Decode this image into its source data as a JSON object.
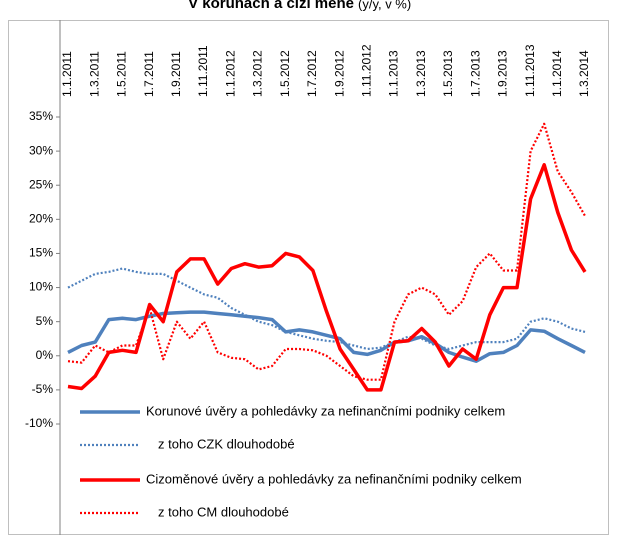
{
  "chart_data": {
    "type": "line",
    "title": "V korunách a cizí měně",
    "subtitle": "(y/y, v %)",
    "categories": [
      "1.1.2011",
      null,
      "1.3.2011",
      null,
      "1.5.2011",
      null,
      "1.7.2011",
      null,
      "1.9.2011",
      null,
      "1.11.2011",
      null,
      "1.1.2012",
      null,
      "1.3.2012",
      null,
      "1.5.2012",
      null,
      "1.7.2012",
      null,
      "1.9.2012",
      null,
      "1.11.2012",
      null,
      "1.1.2013",
      null,
      "1.3.2013",
      null,
      "1.5.2013",
      null,
      "1.7.2013",
      null,
      "1.9.2013",
      null,
      "1.11.2013",
      null,
      "1.1.2014",
      null,
      "1.3.2014"
    ],
    "ylim": [
      -10,
      35
    ],
    "yticks": [
      {
        "value": -10,
        "label": "-10%"
      },
      {
        "value": -5,
        "label": "-5%"
      },
      {
        "value": 0,
        "label": "0%"
      },
      {
        "value": 5,
        "label": "5%"
      },
      {
        "value": 10,
        "label": "10%"
      },
      {
        "value": 15,
        "label": "15%"
      },
      {
        "value": 20,
        "label": "20%"
      },
      {
        "value": 25,
        "label": "25%"
      },
      {
        "value": 30,
        "label": "30%"
      },
      {
        "value": 35,
        "label": "35%"
      }
    ],
    "grid": false,
    "legend": "bottom-left",
    "series": [
      {
        "name": "Korunové úvěry a pohledávky za nefinančními podniky celkem",
        "color": "#4f81bd",
        "dash": "solid",
        "values": [
          0.5,
          1.5,
          2,
          5.3,
          5.5,
          5.3,
          5.8,
          6.2,
          6.3,
          6.4,
          6.4,
          6.2,
          6,
          5.8,
          5.6,
          5.3,
          3.5,
          3.8,
          3.5,
          3,
          2.5,
          0.5,
          0.2,
          0.8,
          2,
          2.2,
          2.8,
          1.8,
          0.5,
          -0.2,
          -0.8,
          0.3,
          0.5,
          1.5,
          3.8,
          3.6,
          2.5,
          1.5,
          0.5
        ]
      },
      {
        "name": "z toho CZK dlouhodobé",
        "color": "#4f81bd",
        "dash": "dotted",
        "values": [
          10,
          11,
          12,
          12.3,
          12.8,
          12.3,
          12,
          12,
          11,
          10,
          9,
          8.5,
          7,
          6,
          5,
          4.5,
          3.5,
          3,
          2.5,
          2.2,
          2,
          1.5,
          1,
          1.2,
          2,
          2.8,
          2.5,
          1.5,
          1,
          1.5,
          2,
          2,
          2,
          2.5,
          5,
          5.5,
          5,
          4,
          3.5
        ]
      },
      {
        "name": "Cizoměnové úvěry a pohledávky za nefinančními podniky celkem",
        "color": "#ff0000",
        "dash": "solid",
        "values": [
          -4.5,
          -4.8,
          -3,
          0.5,
          0.8,
          0.5,
          7.5,
          5,
          12.3,
          14.2,
          14.2,
          10.5,
          12.8,
          13.5,
          13,
          13.2,
          15,
          14.5,
          12.5,
          6.5,
          1,
          -2,
          -5,
          -5,
          2,
          2.2,
          4,
          2,
          -1.5,
          1,
          -0.5,
          6,
          10,
          10,
          23,
          28,
          21,
          15.5,
          12.3
        ]
      },
      {
        "name": "z toho CM dlouhodobé",
        "color": "#ff0000",
        "dash": "dotted",
        "values": [
          -0.8,
          -1,
          1.5,
          0.5,
          1.5,
          1.5,
          7,
          -0.5,
          5,
          2.5,
          5,
          0.5,
          -0.3,
          -0.5,
          -2,
          -1.5,
          1,
          1,
          0.8,
          0,
          -1.5,
          -3,
          -3.5,
          -3.5,
          5,
          9,
          10,
          9,
          6,
          8,
          13,
          15,
          12.5,
          12.5,
          30,
          34,
          27,
          24,
          20.5
        ]
      }
    ]
  }
}
